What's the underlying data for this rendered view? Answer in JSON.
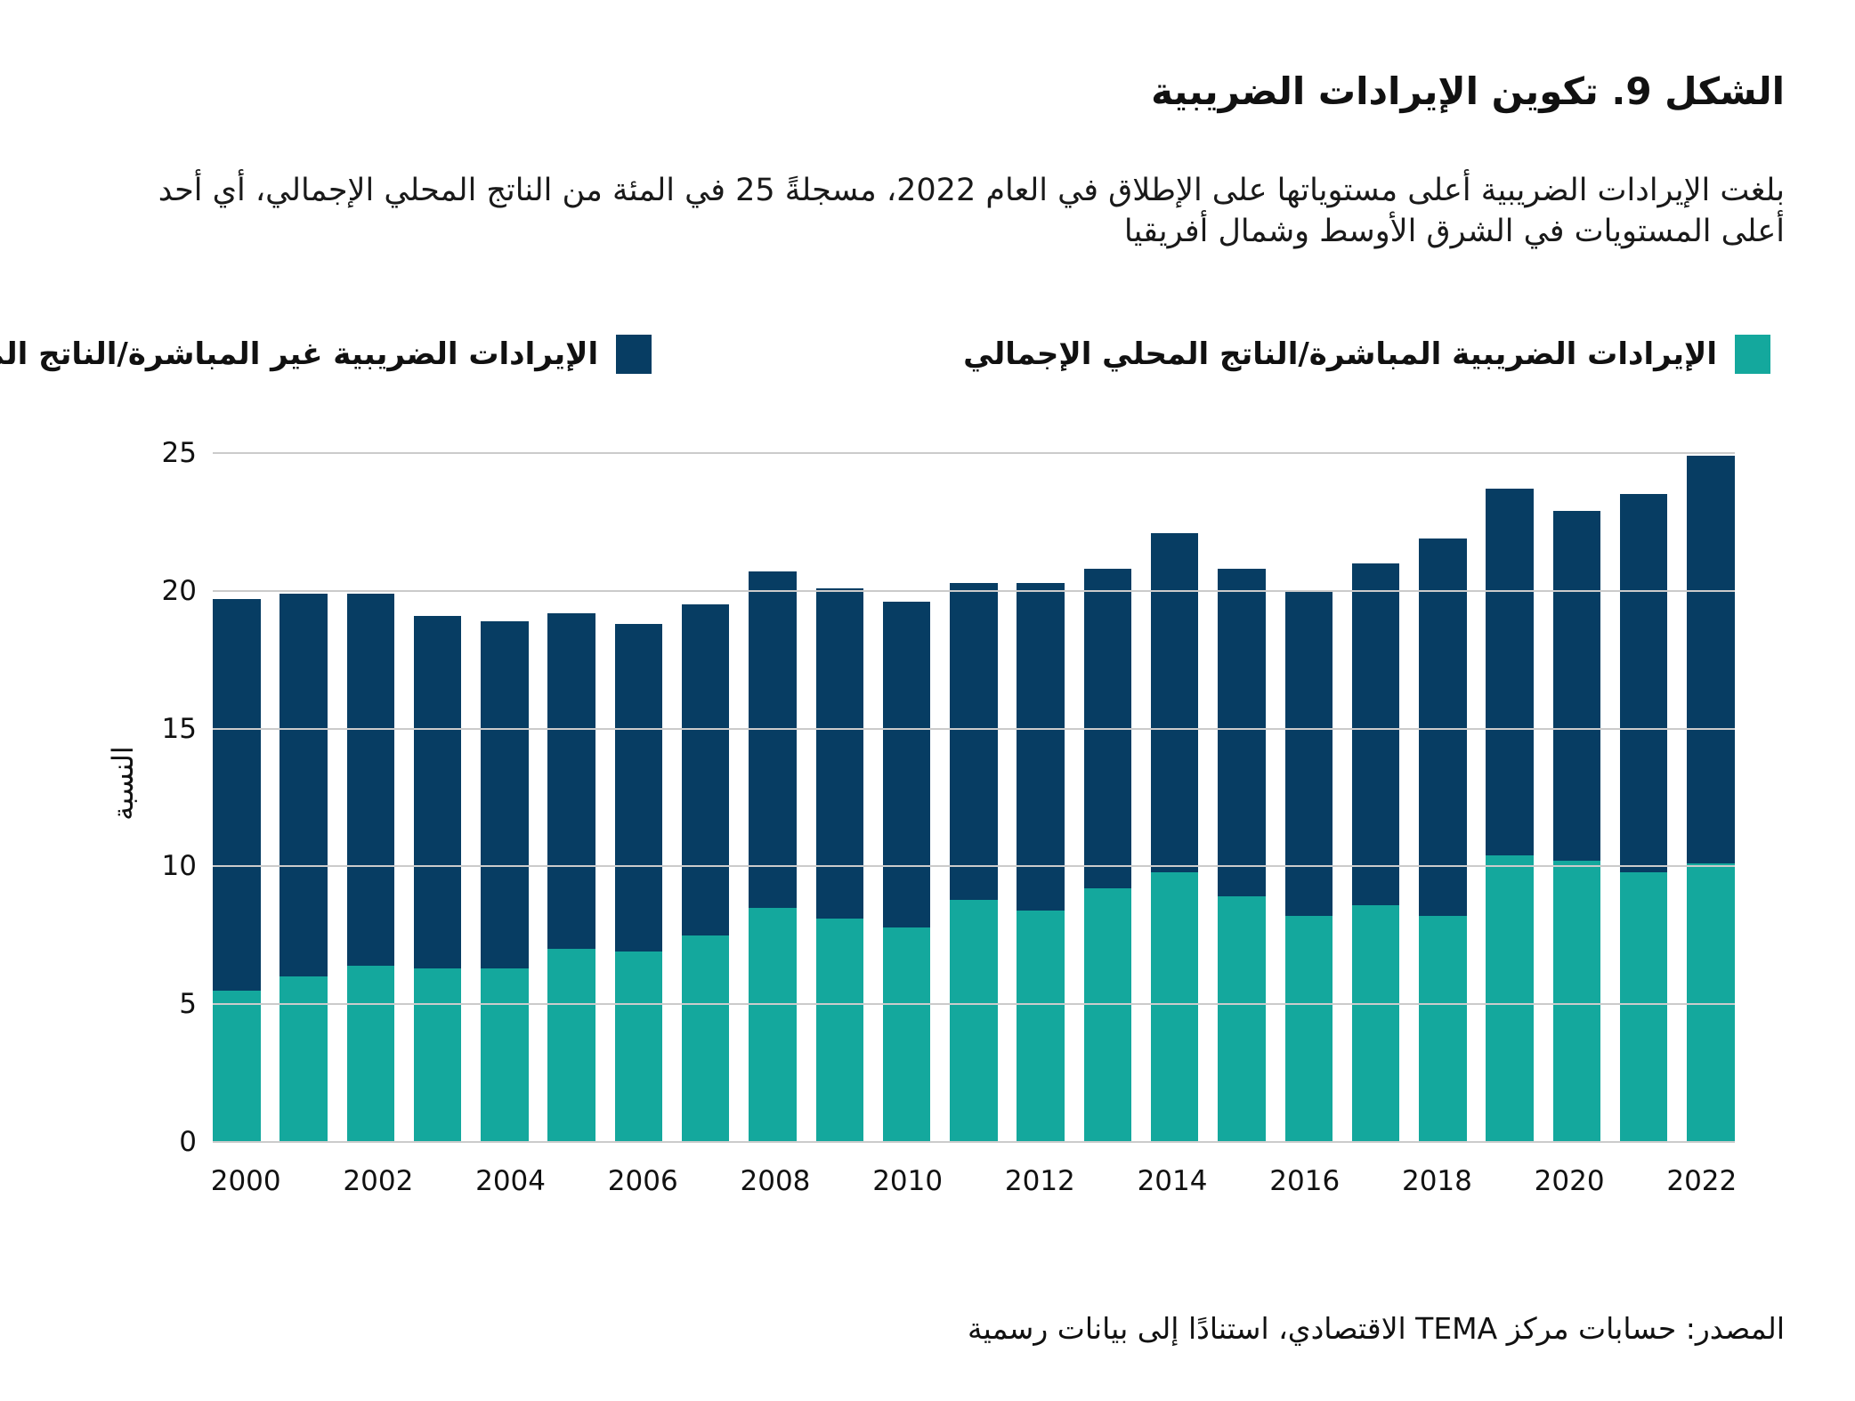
{
  "figure": {
    "title": "الشكل 9. تكوين الإيرادات الضريبية",
    "subtitle": "بلغت الإيرادات الضريبية أعلى مستوياتها على الإطلاق في العام 2022، مسجلةً 25 في المئة من الناتج المحلي الإجمالي، أي أحد أعلى المستويات في الشرق الأوسط وشمال أفريقيا",
    "source": "المصدر: حسابات مركز TEMA الاقتصادي، استنادًا إلى بيانات رسمية"
  },
  "legend": {
    "direct_label": "الإيرادات الضريبية المباشرة/الناتج المحلي الإجمالي",
    "indirect_label": "الإيرادات الضريبية غير المباشرة/الناتج المحلي الإجمالي"
  },
  "colors": {
    "direct": "#14A89D",
    "indirect": "#073D63",
    "gridline": "#cbcbcb",
    "text": "#111111"
  },
  "chart_data": {
    "type": "bar",
    "stacked": true,
    "title": "",
    "xlabel": "",
    "ylabel": "النسبة",
    "ylim": [
      0,
      25
    ],
    "yticks": [
      0,
      5,
      10,
      15,
      20,
      25
    ],
    "grid": true,
    "legend_position": "top",
    "categories": [
      "2000",
      "2001",
      "2002",
      "2003",
      "2004",
      "2005",
      "2006",
      "2007",
      "2008",
      "2009",
      "2010",
      "2011",
      "2012",
      "2013",
      "2014",
      "2015",
      "2016",
      "2017",
      "2018",
      "2019",
      "2020",
      "2021",
      "2022"
    ],
    "xtick_labels": [
      "2000",
      "2002",
      "2004",
      "2006",
      "2008",
      "2010",
      "2012",
      "2014",
      "2016",
      "2018",
      "2020",
      "2022"
    ],
    "series": [
      {
        "name": "الإيرادات الضريبية المباشرة/الناتج المحلي الإجمالي",
        "color": "#14A89D",
        "values": [
          5.5,
          6.0,
          6.4,
          6.3,
          6.3,
          7.0,
          6.9,
          7.5,
          8.5,
          8.1,
          7.8,
          8.8,
          8.4,
          9.2,
          9.8,
          8.9,
          8.2,
          8.6,
          8.2,
          10.4,
          10.2,
          9.8,
          10.1
        ]
      },
      {
        "name": "الإيرادات الضريبية غير المباشرة/الناتج المحلي الإجمالي",
        "color": "#073D63",
        "values": [
          14.2,
          13.9,
          13.5,
          12.8,
          12.6,
          12.2,
          11.9,
          12.0,
          12.2,
          12.0,
          11.8,
          11.5,
          11.9,
          11.6,
          12.3,
          11.9,
          11.8,
          12.4,
          13.7,
          13.3,
          12.7,
          13.7,
          14.8
        ]
      }
    ],
    "totals": [
      19.7,
      19.9,
      19.9,
      19.1,
      18.9,
      19.2,
      18.8,
      19.5,
      20.7,
      20.1,
      19.6,
      20.3,
      20.3,
      20.8,
      22.1,
      20.8,
      20.0,
      21.0,
      21.9,
      23.7,
      22.9,
      23.5,
      24.9
    ]
  }
}
